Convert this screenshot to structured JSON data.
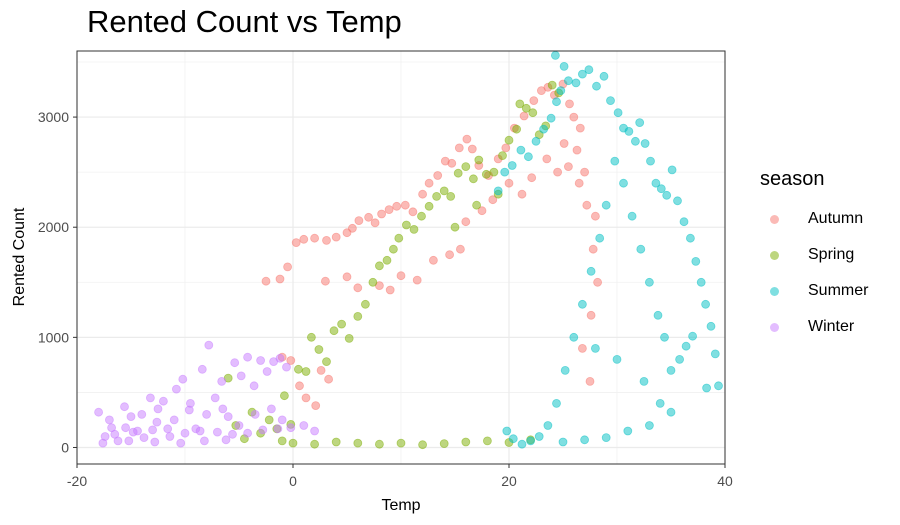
{
  "chart_data": {
    "type": "scatter",
    "title": "Rented Count vs Temp",
    "xlabel": "Temp",
    "ylabel": "Rented Count",
    "xlim": [
      -20,
      40
    ],
    "ylim": [
      -150,
      3600
    ],
    "xticks": [
      -20,
      0,
      20,
      40
    ],
    "yticks": [
      0,
      1000,
      2000,
      3000
    ],
    "xtick_labels": [
      "-20",
      "0",
      "20",
      "40"
    ],
    "ytick_labels": [
      "0",
      "1000",
      "2000",
      "3000"
    ],
    "grid": true,
    "theme": "bw",
    "point_alpha": 0.5,
    "legend": {
      "title": "season",
      "position": "right"
    },
    "series": [
      {
        "name": "Autumn",
        "color": "#F8766D",
        "points": [
          [
            -2.5,
            1510
          ],
          [
            -1.2,
            1530
          ],
          [
            -0.5,
            1640
          ],
          [
            0.3,
            1860
          ],
          [
            1.0,
            1890
          ],
          [
            2.0,
            1900
          ],
          [
            3.1,
            1880
          ],
          [
            4.0,
            1910
          ],
          [
            5.0,
            1950
          ],
          [
            5.5,
            1990
          ],
          [
            6.1,
            2060
          ],
          [
            7.0,
            2090
          ],
          [
            7.6,
            2040
          ],
          [
            8.2,
            2120
          ],
          [
            8.9,
            2160
          ],
          [
            9.6,
            2190
          ],
          [
            10.4,
            2200
          ],
          [
            11.1,
            2140
          ],
          [
            12.0,
            2300
          ],
          [
            12.6,
            2400
          ],
          [
            13.4,
            2470
          ],
          [
            14.1,
            2600
          ],
          [
            14.7,
            2580
          ],
          [
            15.4,
            2720
          ],
          [
            16.1,
            2800
          ],
          [
            16.6,
            2710
          ],
          [
            17.2,
            2560
          ],
          [
            18.1,
            2470
          ],
          [
            19.0,
            2620
          ],
          [
            19.7,
            2720
          ],
          [
            20.5,
            2900
          ],
          [
            21.4,
            3010
          ],
          [
            22.3,
            3150
          ],
          [
            23.0,
            3240
          ],
          [
            23.6,
            3270
          ],
          [
            24.2,
            3200
          ],
          [
            25.0,
            3300
          ],
          [
            25.6,
            3120
          ],
          [
            26.0,
            3000
          ],
          [
            26.6,
            2900
          ],
          [
            22.1,
            2450
          ],
          [
            23.5,
            2620
          ],
          [
            25.1,
            2760
          ],
          [
            26.3,
            2700
          ],
          [
            27.0,
            2500
          ],
          [
            21.2,
            2300
          ],
          [
            20.0,
            2400
          ],
          [
            18.5,
            2250
          ],
          [
            17.5,
            2150
          ],
          [
            16.0,
            2050
          ],
          [
            24.5,
            2500
          ],
          [
            25.5,
            2550
          ],
          [
            26.5,
            2400
          ],
          [
            27.2,
            2200
          ],
          [
            28.0,
            2100
          ],
          [
            27.8,
            1800
          ],
          [
            28.2,
            1500
          ],
          [
            27.6,
            1200
          ],
          [
            26.8,
            900
          ],
          [
            27.5,
            600
          ],
          [
            3.0,
            1510
          ],
          [
            5.0,
            1550
          ],
          [
            6.0,
            1450
          ],
          [
            8.0,
            1470
          ],
          [
            9.0,
            1430
          ],
          [
            10.0,
            1560
          ],
          [
            11.5,
            1520
          ],
          [
            13.0,
            1700
          ],
          [
            14.5,
            1750
          ],
          [
            15.5,
            1800
          ],
          [
            -1.0,
            820
          ],
          [
            -0.2,
            790
          ],
          [
            0.6,
            560
          ],
          [
            1.2,
            450
          ],
          [
            2.1,
            380
          ],
          [
            2.6,
            700
          ],
          [
            3.3,
            620
          ]
        ]
      },
      {
        "name": "Spring",
        "color": "#7CAE00",
        "points": [
          [
            -6.0,
            630
          ],
          [
            -5.3,
            200
          ],
          [
            -4.5,
            80
          ],
          [
            -3.8,
            320
          ],
          [
            -3.0,
            130
          ],
          [
            -2.2,
            250
          ],
          [
            -1.5,
            170
          ],
          [
            -0.8,
            470
          ],
          [
            -0.2,
            210
          ],
          [
            0.5,
            710
          ],
          [
            1.2,
            690
          ],
          [
            1.7,
            1000
          ],
          [
            2.4,
            890
          ],
          [
            3.1,
            780
          ],
          [
            3.8,
            1060
          ],
          [
            4.5,
            1120
          ],
          [
            5.2,
            990
          ],
          [
            6.0,
            1190
          ],
          [
            6.7,
            1300
          ],
          [
            7.4,
            1500
          ],
          [
            8.0,
            1650
          ],
          [
            8.7,
            1700
          ],
          [
            9.3,
            1800
          ],
          [
            9.8,
            1900
          ],
          [
            10.5,
            2020
          ],
          [
            11.2,
            1980
          ],
          [
            11.9,
            2100
          ],
          [
            12.6,
            2190
          ],
          [
            13.3,
            2280
          ],
          [
            14.0,
            2330
          ],
          [
            14.6,
            2280
          ],
          [
            15.3,
            2490
          ],
          [
            16.0,
            2550
          ],
          [
            16.7,
            2440
          ],
          [
            17.2,
            2610
          ],
          [
            17.9,
            2480
          ],
          [
            18.6,
            2500
          ],
          [
            19.4,
            2650
          ],
          [
            20.0,
            2790
          ],
          [
            20.7,
            2890
          ],
          [
            21.0,
            3120
          ],
          [
            21.6,
            3080
          ],
          [
            22.2,
            3040
          ],
          [
            22.8,
            2840
          ],
          [
            23.4,
            2920
          ],
          [
            24.0,
            3290
          ],
          [
            24.6,
            3220
          ],
          [
            19.0,
            2300
          ],
          [
            17.0,
            2200
          ],
          [
            15.0,
            2000
          ],
          [
            -1.0,
            60
          ],
          [
            0.0,
            40
          ],
          [
            2.0,
            30
          ],
          [
            4.0,
            50
          ],
          [
            6.0,
            40
          ],
          [
            8.0,
            30
          ],
          [
            10.0,
            40
          ],
          [
            12.0,
            25
          ],
          [
            14.0,
            35
          ],
          [
            16.0,
            50
          ],
          [
            18.0,
            60
          ],
          [
            20.0,
            45
          ],
          [
            22.0,
            70
          ]
        ]
      },
      {
        "name": "Summer",
        "color": "#00BFC4",
        "points": [
          [
            19.0,
            2330
          ],
          [
            19.6,
            2500
          ],
          [
            20.3,
            2560
          ],
          [
            21.1,
            2700
          ],
          [
            21.8,
            2640
          ],
          [
            22.5,
            2780
          ],
          [
            23.2,
            2890
          ],
          [
            23.9,
            2990
          ],
          [
            24.4,
            3140
          ],
          [
            24.8,
            3240
          ],
          [
            25.1,
            3460
          ],
          [
            24.3,
            3560
          ],
          [
            25.5,
            3330
          ],
          [
            26.2,
            3310
          ],
          [
            26.8,
            3390
          ],
          [
            27.4,
            3430
          ],
          [
            28.1,
            3280
          ],
          [
            28.8,
            3370
          ],
          [
            29.4,
            3150
          ],
          [
            30.1,
            3040
          ],
          [
            30.6,
            2900
          ],
          [
            31.1,
            2870
          ],
          [
            31.7,
            2780
          ],
          [
            32.1,
            2950
          ],
          [
            32.6,
            2760
          ],
          [
            33.1,
            2600
          ],
          [
            33.6,
            2400
          ],
          [
            34.1,
            2350
          ],
          [
            34.6,
            2290
          ],
          [
            35.1,
            2520
          ],
          [
            35.6,
            2240
          ],
          [
            36.2,
            2050
          ],
          [
            36.8,
            1900
          ],
          [
            37.3,
            1690
          ],
          [
            37.8,
            1500
          ],
          [
            38.2,
            1300
          ],
          [
            38.7,
            1100
          ],
          [
            39.1,
            850
          ],
          [
            39.4,
            560
          ],
          [
            38.3,
            540
          ],
          [
            37.0,
            1010
          ],
          [
            36.4,
            920
          ],
          [
            35.8,
            800
          ],
          [
            35.0,
            700
          ],
          [
            34.4,
            1000
          ],
          [
            33.8,
            1200
          ],
          [
            33.0,
            1500
          ],
          [
            32.2,
            1800
          ],
          [
            31.4,
            2100
          ],
          [
            30.6,
            2400
          ],
          [
            29.8,
            2600
          ],
          [
            29.0,
            2200
          ],
          [
            28.4,
            1900
          ],
          [
            27.6,
            1600
          ],
          [
            26.8,
            1300
          ],
          [
            26.0,
            1000
          ],
          [
            25.2,
            700
          ],
          [
            24.4,
            400
          ],
          [
            23.6,
            200
          ],
          [
            22.8,
            100
          ],
          [
            22.0,
            60
          ],
          [
            21.2,
            30
          ],
          [
            20.4,
            80
          ],
          [
            19.8,
            150
          ],
          [
            25.0,
            50
          ],
          [
            27.0,
            70
          ],
          [
            29.0,
            90
          ],
          [
            31.0,
            150
          ],
          [
            33.0,
            200
          ],
          [
            35.0,
            320
          ],
          [
            34.0,
            400
          ],
          [
            32.5,
            600
          ],
          [
            30.0,
            800
          ],
          [
            28.0,
            900
          ]
        ]
      },
      {
        "name": "Winter",
        "color": "#C77CFF",
        "points": [
          [
            -18.0,
            320
          ],
          [
            -17.4,
            100
          ],
          [
            -16.8,
            180
          ],
          [
            -16.2,
            60
          ],
          [
            -15.6,
            370
          ],
          [
            -15.0,
            280
          ],
          [
            -14.4,
            150
          ],
          [
            -13.8,
            90
          ],
          [
            -13.2,
            450
          ],
          [
            -12.6,
            230
          ],
          [
            -12.0,
            420
          ],
          [
            -11.4,
            100
          ],
          [
            -10.8,
            530
          ],
          [
            -10.2,
            620
          ],
          [
            -9.6,
            340
          ],
          [
            -9.0,
            170
          ],
          [
            -8.4,
            710
          ],
          [
            -7.8,
            930
          ],
          [
            -7.2,
            450
          ],
          [
            -6.6,
            600
          ],
          [
            -6.0,
            280
          ],
          [
            -5.4,
            770
          ],
          [
            -4.8,
            650
          ],
          [
            -4.2,
            820
          ],
          [
            -3.6,
            560
          ],
          [
            -3.0,
            790
          ],
          [
            -2.4,
            690
          ],
          [
            -1.8,
            780
          ],
          [
            -1.2,
            810
          ],
          [
            -0.6,
            730
          ],
          [
            -17.0,
            250
          ],
          [
            -15.5,
            180
          ],
          [
            -14.0,
            300
          ],
          [
            -12.5,
            350
          ],
          [
            -11.0,
            250
          ],
          [
            -9.5,
            400
          ],
          [
            -8.0,
            300
          ],
          [
            -6.5,
            350
          ],
          [
            -5.0,
            200
          ],
          [
            -3.5,
            300
          ],
          [
            -2.0,
            350
          ],
          [
            -1.0,
            250
          ],
          [
            -16.5,
            120
          ],
          [
            -14.8,
            140
          ],
          [
            -13.0,
            160
          ],
          [
            -11.6,
            170
          ],
          [
            -10.0,
            130
          ],
          [
            -8.6,
            150
          ],
          [
            -7.0,
            140
          ],
          [
            -5.6,
            120
          ],
          [
            -4.2,
            130
          ],
          [
            -2.8,
            160
          ],
          [
            -1.4,
            170
          ],
          [
            -0.2,
            180
          ],
          [
            1.0,
            200
          ],
          [
            2.0,
            150
          ],
          [
            -17.6,
            40
          ],
          [
            -15.2,
            60
          ],
          [
            -12.8,
            50
          ],
          [
            -10.4,
            40
          ],
          [
            -8.2,
            60
          ],
          [
            -6.2,
            70
          ]
        ]
      }
    ]
  }
}
